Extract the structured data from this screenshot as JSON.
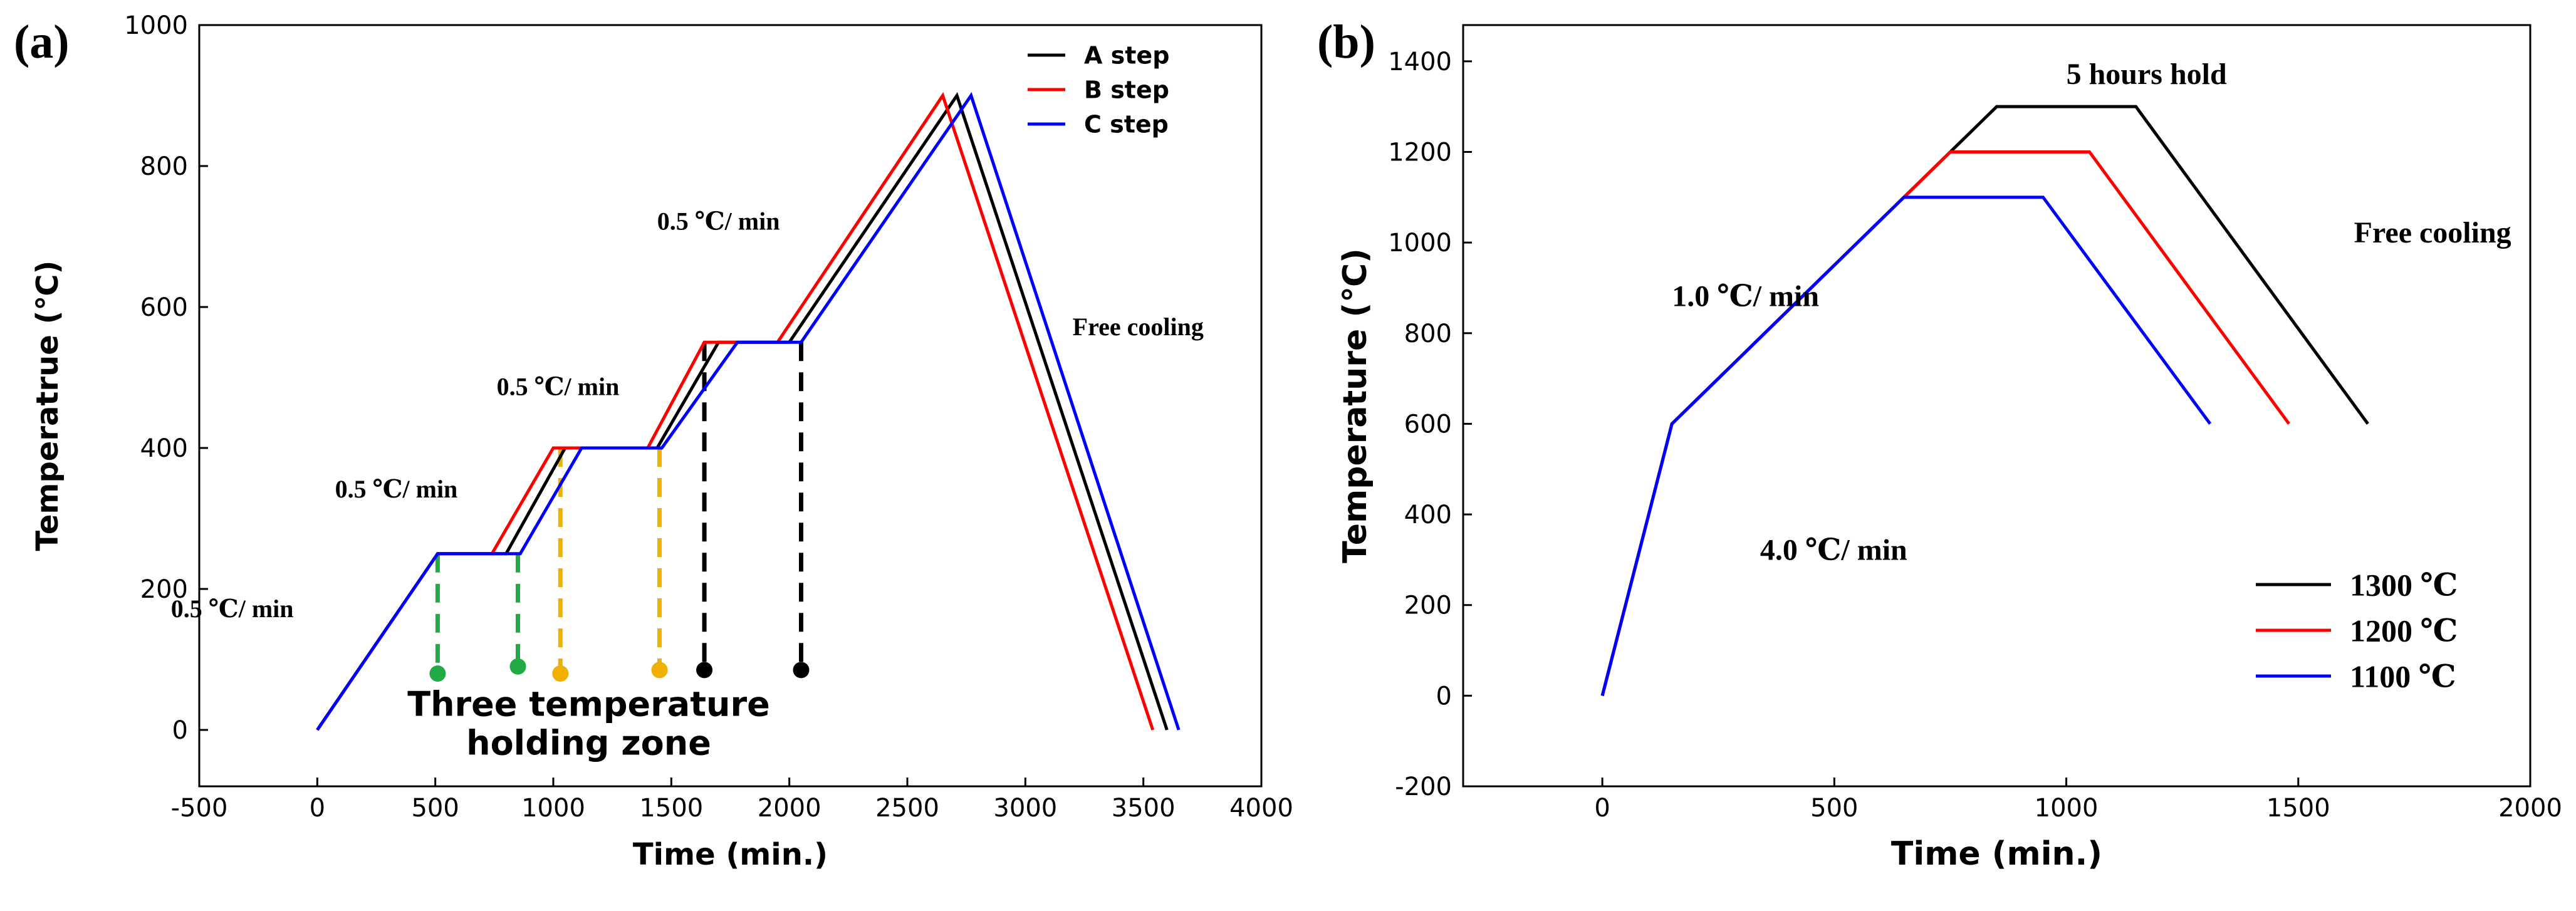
{
  "chart_data": [
    {
      "panel_label": "(a)",
      "type": "line",
      "xlabel": "Time (min.)",
      "ylabel": "Temperatrue (℃)",
      "xlim": [
        -500,
        4000
      ],
      "ylim": [
        -80,
        1000
      ],
      "xticks": [
        -500,
        0,
        500,
        1000,
        1500,
        2000,
        2500,
        3000,
        3500,
        4000
      ],
      "yticks": [
        0,
        200,
        400,
        600,
        800,
        1000
      ],
      "series": [
        {
          "name": "A step",
          "color": "#000000",
          "x": [
            0,
            510,
            800,
            1050,
            1440,
            1700,
            2000,
            2710,
            3600
          ],
          "y": [
            0,
            250,
            250,
            400,
            400,
            550,
            550,
            900,
            0
          ]
        },
        {
          "name": "B step",
          "color": "#ff0000",
          "x": [
            0,
            510,
            740,
            1000,
            1400,
            1640,
            1950,
            2650,
            3540
          ],
          "y": [
            0,
            250,
            250,
            400,
            400,
            550,
            550,
            900,
            0
          ]
        },
        {
          "name": "C step",
          "color": "#0000ff",
          "x": [
            0,
            510,
            860,
            1120,
            1460,
            1780,
            2050,
            2770,
            3650
          ],
          "y": [
            0,
            250,
            250,
            400,
            400,
            550,
            550,
            900,
            0
          ]
        }
      ],
      "markers": [
        {
          "x": 510,
          "y": 80,
          "top": 250,
          "color": "#22aa44"
        },
        {
          "x": 850,
          "y": 90,
          "top": 250,
          "color": "#22aa44"
        },
        {
          "x": 1030,
          "y": 80,
          "top": 400,
          "color": "#f0b000"
        },
        {
          "x": 1450,
          "y": 85,
          "top": 400,
          "color": "#f0b000"
        },
        {
          "x": 1640,
          "y": 85,
          "top": 550,
          "color": "#000000"
        },
        {
          "x": 2050,
          "y": 85,
          "top": 550,
          "color": "#000000"
        }
      ],
      "annotations": [
        {
          "text": "0.5 ℃/ min",
          "x": -620,
          "y": 160
        },
        {
          "text": "0.5 ℃/ min",
          "x": 75,
          "y": 330
        },
        {
          "text": "0.5 ℃/ min",
          "x": 760,
          "y": 475
        },
        {
          "text": "0.5 ℃/ min",
          "x": 1440,
          "y": 710
        },
        {
          "text": "Free cooling",
          "x": 3200,
          "y": 560
        }
      ],
      "zone_label": {
        "line1": "Three temperature",
        "line2": "holding zone",
        "x": 1150,
        "y1": 20,
        "y2": -35
      },
      "legend_loc": "top-right"
    },
    {
      "panel_label": "(b)",
      "type": "line",
      "xlabel": "Time (min.)",
      "ylabel": "Temperature (℃)",
      "xlim": [
        -300,
        2000
      ],
      "ylim": [
        -200,
        1480
      ],
      "xticks": [
        0,
        500,
        1000,
        1500,
        2000
      ],
      "yticks": [
        -200,
        0,
        200,
        400,
        600,
        800,
        1000,
        1200,
        1400
      ],
      "series": [
        {
          "name": "1300 ℃",
          "color": "#000000",
          "x": [
            0,
            150,
            850,
            1150,
            1650
          ],
          "y": [
            0,
            600,
            1300,
            1300,
            600
          ]
        },
        {
          "name": "1200 ℃",
          "color": "#ff0000",
          "x": [
            0,
            150,
            750,
            1050,
            1480
          ],
          "y": [
            0,
            600,
            1200,
            1200,
            600
          ]
        },
        {
          "name": "1100 ℃",
          "color": "#0000ff",
          "x": [
            0,
            150,
            650,
            950,
            1310
          ],
          "y": [
            0,
            600,
            1100,
            1100,
            600
          ]
        }
      ],
      "annotations": [
        {
          "text": "5 hours  hold",
          "x": 1000,
          "y": 1350
        },
        {
          "text": "Free cooling",
          "x": 1620,
          "y": 1000
        },
        {
          "text": "1.0 ℃/ min",
          "x": 150,
          "y": 860
        },
        {
          "text": "4.0 ℃/ min",
          "x": 340,
          "y": 300
        }
      ],
      "legend_loc": "bottom-right"
    }
  ]
}
